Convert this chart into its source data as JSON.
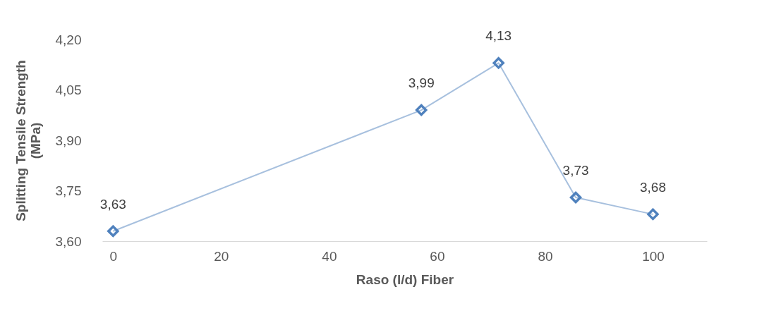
{
  "chart_data": {
    "type": "line",
    "xlabel": "Raso (l/d) Fiber",
    "ylabel": "Splitting Tensile Strength (MPa)",
    "x": [
      0,
      57.1,
      71.4,
      85.7,
      100
    ],
    "series": [
      {
        "color": "#4f81bd",
        "values": [
          3.63,
          3.99,
          4.13,
          3.73,
          3.68
        ],
        "value_labels": [
          "3,63",
          "3,99",
          "4,13",
          "3,73",
          "3,68"
        ]
      }
    ],
    "xlim": [
      -2,
      110
    ],
    "xticks": [
      0,
      20,
      40,
      60,
      80,
      100
    ],
    "ylim": [
      3.6,
      4.2
    ],
    "yticks": [
      {
        "value": 3.6,
        "label": "3,60"
      },
      {
        "value": 3.75,
        "label": "3,75"
      },
      {
        "value": 3.9,
        "label": "3,90"
      },
      {
        "value": 4.05,
        "label": "4,05"
      },
      {
        "value": 4.2,
        "label": "4,20"
      }
    ],
    "marker": "diamond",
    "grid": false,
    "legend": false
  }
}
